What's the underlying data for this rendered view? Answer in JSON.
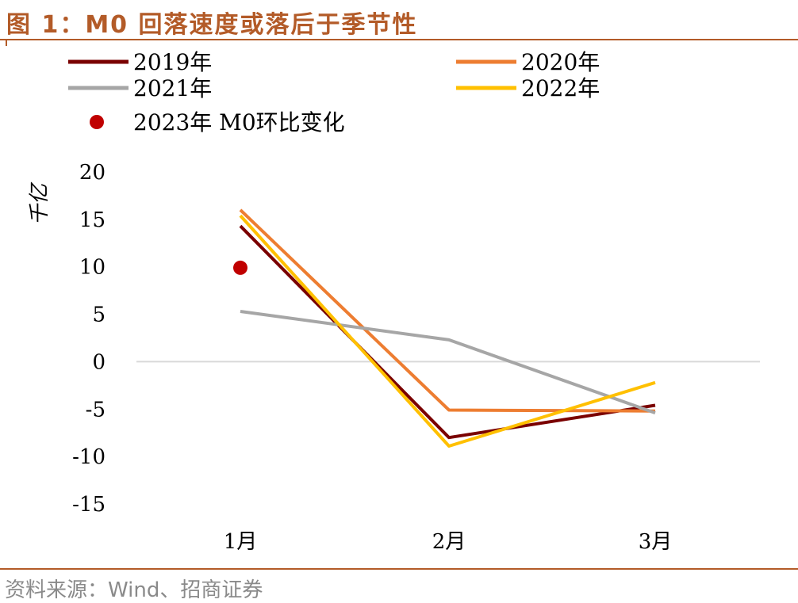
{
  "figure": {
    "title": "图 1：M0 回落速度或落后于季节性",
    "source": "资料来源：Wind、招商证券"
  },
  "colors": {
    "title": "#b35b28",
    "rule": "#b35b28",
    "axis": "#d9d9d9"
  },
  "chart_data": {
    "type": "line",
    "categories": [
      "1月",
      "2月",
      "3月"
    ],
    "ylabel": "千亿",
    "ylim": [
      -15,
      20
    ],
    "yticks": [
      20,
      15,
      10,
      5,
      0,
      -5,
      -10,
      -15
    ],
    "grid": false,
    "legend_position": "top",
    "series": [
      {
        "name": "2019年",
        "color": "#7a0000",
        "values": [
          14.3,
          -8.0,
          -4.6
        ]
      },
      {
        "name": "2020年",
        "color": "#ed7d31",
        "values": [
          16.0,
          -5.1,
          -5.2
        ]
      },
      {
        "name": "2021年",
        "color": "#a6a6a6",
        "values": [
          5.3,
          2.3,
          -5.4
        ]
      },
      {
        "name": "2022年",
        "color": "#ffc000",
        "values": [
          15.4,
          -8.9,
          -2.2
        ]
      }
    ],
    "points": [
      {
        "name": "2023年 M0环比变化",
        "color": "#c00000",
        "category": "1月",
        "value": 9.9
      }
    ]
  }
}
